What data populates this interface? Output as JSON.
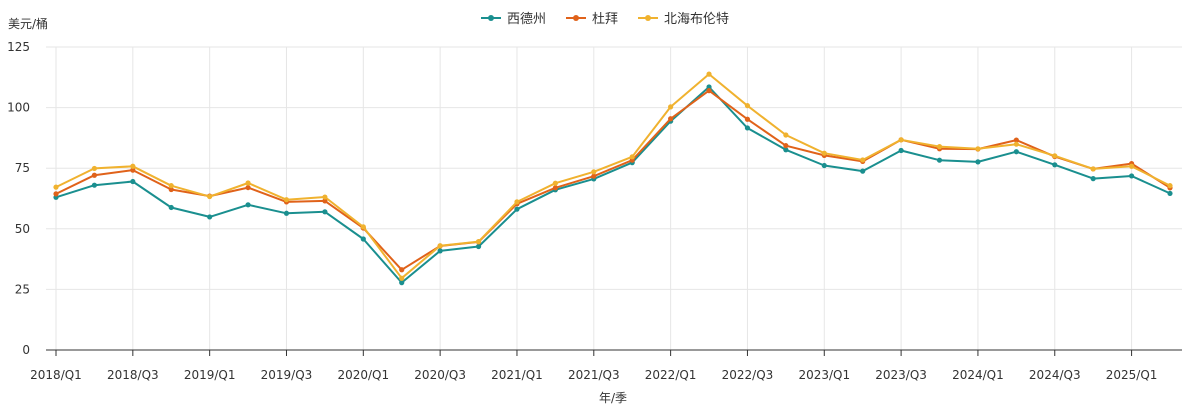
{
  "chart_data": {
    "type": "line",
    "ylabel": "美元/桶",
    "xlabel": "年/季",
    "ylim": [
      0,
      125
    ],
    "yticks": [
      "0",
      "25",
      "50",
      "75",
      "100",
      "125"
    ],
    "grid": true,
    "legend_position": "top-center",
    "x": [
      "2018/Q1",
      "2018/Q2",
      "2018/Q3",
      "2018/Q4",
      "2019/Q1",
      "2019/Q2",
      "2019/Q3",
      "2019/Q4",
      "2020/Q1",
      "2020/Q2",
      "2020/Q3",
      "2020/Q4",
      "2021/Q1",
      "2021/Q2",
      "2021/Q3",
      "2021/Q4",
      "2022/Q1",
      "2022/Q2",
      "2022/Q3",
      "2022/Q4",
      "2023/Q1",
      "2023/Q2",
      "2023/Q3",
      "2023/Q4",
      "2024/Q1",
      "2024/Q2",
      "2024/Q3",
      "2024/Q4",
      "2025/Q1",
      "2025/Q2"
    ],
    "x_tick_labels": [
      "2018/Q1",
      "2018/Q3",
      "2019/Q1",
      "2019/Q3",
      "2020/Q1",
      "2020/Q3",
      "2021/Q1",
      "2021/Q3",
      "2022/Q1",
      "2022/Q3",
      "2023/Q1",
      "2023/Q3",
      "2024/Q1",
      "2024/Q3",
      "2025/Q1"
    ],
    "series": [
      {
        "name": "西德州",
        "color": "#1a8f8f",
        "values": [
          63.0,
          68.0,
          69.5,
          58.8,
          54.9,
          59.9,
          56.4,
          57.0,
          45.8,
          27.8,
          40.9,
          42.7,
          58.1,
          66.1,
          70.6,
          77.3,
          94.4,
          108.5,
          91.6,
          82.6,
          76.1,
          73.8,
          82.3,
          78.3,
          77.6,
          81.8,
          76.4,
          70.7,
          71.8,
          64.6
        ]
      },
      {
        "name": "杜拜",
        "color": "#e0621a",
        "values": [
          64.4,
          72.1,
          74.2,
          66.2,
          63.5,
          67.0,
          61.1,
          61.5,
          50.3,
          33.1,
          42.9,
          44.6,
          60.3,
          66.9,
          71.7,
          78.3,
          95.4,
          107.0,
          95.2,
          84.3,
          80.3,
          77.8,
          86.7,
          83.0,
          82.9,
          86.6,
          79.8,
          74.7,
          76.9,
          66.9
        ]
      },
      {
        "name": "北海布伦特",
        "color": "#f0b22f",
        "values": [
          67.2,
          74.9,
          75.8,
          67.8,
          63.3,
          68.9,
          62.0,
          63.1,
          50.8,
          29.6,
          43.0,
          44.7,
          61.1,
          68.8,
          73.5,
          79.7,
          100.3,
          113.8,
          100.8,
          88.7,
          81.2,
          78.4,
          86.7,
          83.9,
          83.0,
          84.9,
          80.1,
          74.7,
          75.8,
          67.8
        ]
      }
    ]
  }
}
